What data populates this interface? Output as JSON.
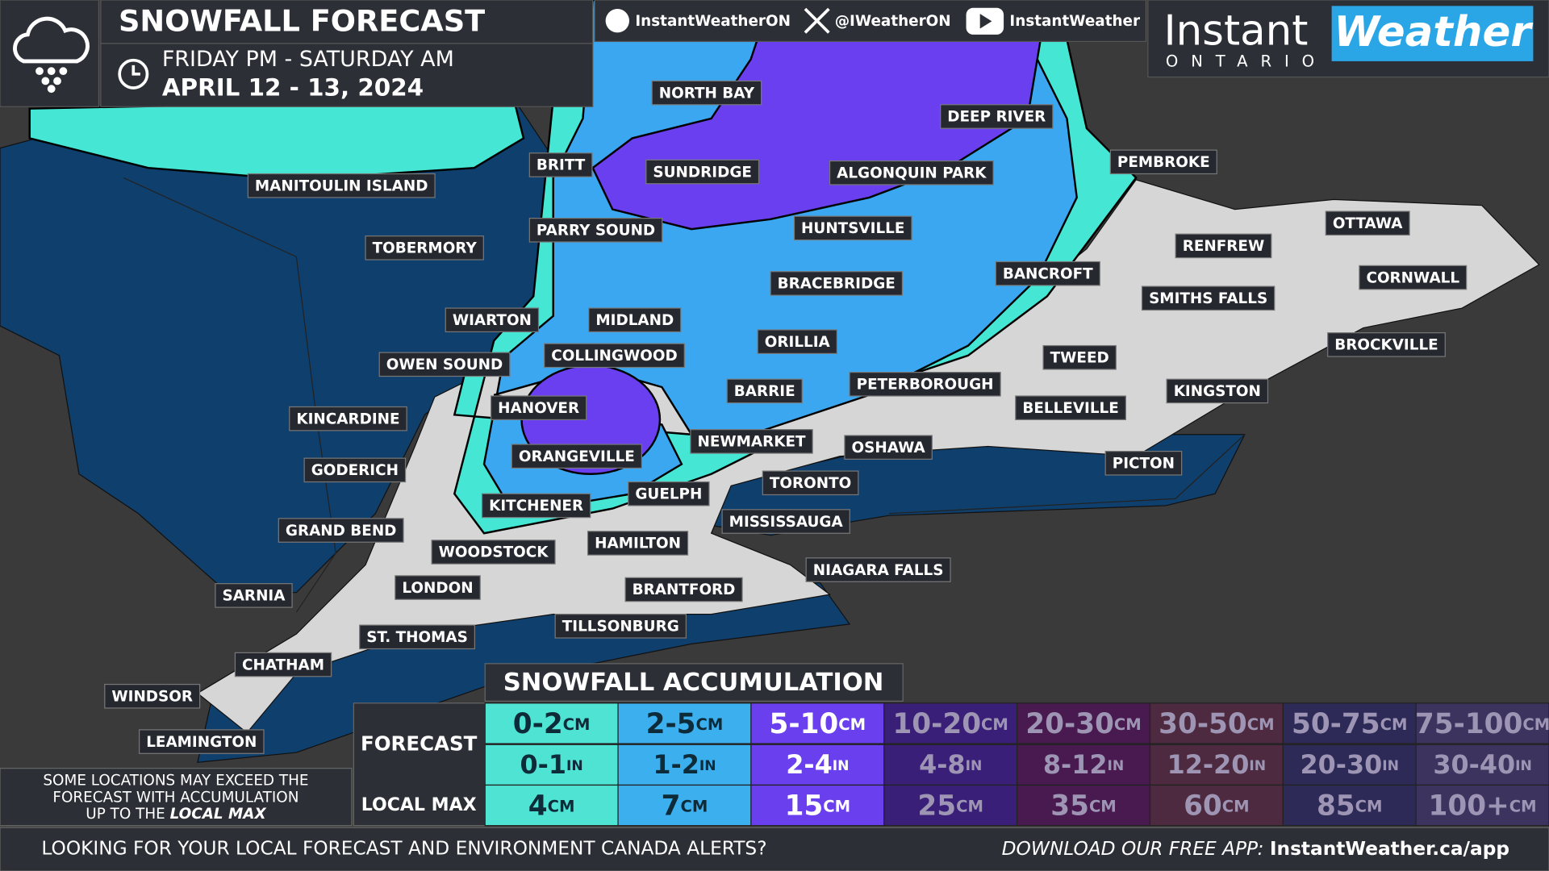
{
  "header": {
    "title": "SNOWFALL FORECAST",
    "period": "FRIDAY PM - SATURDAY AM",
    "dates": "APRIL 12 - 13, 2024"
  },
  "social": {
    "facebook": "InstantWeatherON",
    "x": "@IWeatherON",
    "youtube": "InstantWeather"
  },
  "logo": {
    "instant": "Instant",
    "weather": "Weather",
    "region": "ONTARIO"
  },
  "cities": [
    "NORTH BAY",
    "DEEP RIVER",
    "BRITT",
    "SUNDRIDGE",
    "ALGONQUIN PARK",
    "PEMBROKE",
    "MANITOULIN ISLAND",
    "PARRY SOUND",
    "HUNTSVILLE",
    "OTTAWA",
    "TOBERMORY",
    "RENFREW",
    "BANCROFT",
    "BRACEBRIDGE",
    "SMITHS FALLS",
    "CORNWALL",
    "WIARTON",
    "MIDLAND",
    "ORILLIA",
    "BROCKVILLE",
    "TWEED",
    "OWEN SOUND",
    "COLLINGWOOD",
    "PETERBOROUGH",
    "BARRIE",
    "KINGSTON",
    "HANOVER",
    "BELLEVILLE",
    "KINCARDINE",
    "NEWMARKET",
    "OSHAWA",
    "ORANGEVILLE",
    "PICTON",
    "GODERICH",
    "TORONTO",
    "GUELPH",
    "KITCHENER",
    "MISSISSAUGA",
    "GRAND BEND",
    "HAMILTON",
    "WOODSTOCK",
    "NIAGARA FALLS",
    "BRANTFORD",
    "LONDON",
    "SARNIA",
    "TILLSONBURG",
    "ST. THOMAS",
    "CHATHAM",
    "WINDSOR",
    "LEAMINGTON"
  ],
  "legend": {
    "title": "SNOWFALL ACCUMULATION",
    "forecast_label": "FORECAST",
    "max_label": "LOCAL MAX",
    "units": {
      "cm": "CM",
      "in": "IN"
    },
    "columns": [
      {
        "cm": "0-2",
        "in": "0-1",
        "max": "4",
        "color": "#4fe3d3"
      },
      {
        "cm": "2-5",
        "in": "1-2",
        "max": "7",
        "color": "#3cb0ee"
      },
      {
        "cm": "5-10",
        "in": "2-4",
        "max": "15",
        "color": "#6a40ee"
      },
      {
        "cm": "10-20",
        "in": "4-8",
        "max": "25",
        "color": "#3a1f78"
      },
      {
        "cm": "20-30",
        "in": "8-12",
        "max": "35",
        "color": "#481a50"
      },
      {
        "cm": "30-50",
        "in": "12-20",
        "max": "60",
        "color": "#4d2a3f"
      },
      {
        "cm": "50-75",
        "in": "20-30",
        "max": "85",
        "color": "#2d2a58"
      },
      {
        "cm": "75-100",
        "in": "30-40",
        "max": "100+",
        "color": "#3c345e"
      }
    ]
  },
  "note": {
    "lines": [
      "SOME LOCATIONS MAY EXCEED THE",
      "FORECAST WITH ACCUMULATION",
      "UP TO THE"
    ],
    "emphasis": "LOCAL MAX"
  },
  "footer": {
    "question": "LOOKING FOR YOUR LOCAL FORECAST AND ENVIRONMENT CANADA ALERTS?",
    "download": "DOWNLOAD OUR FREE APP: ",
    "url": "InstantWeather.ca/app"
  }
}
